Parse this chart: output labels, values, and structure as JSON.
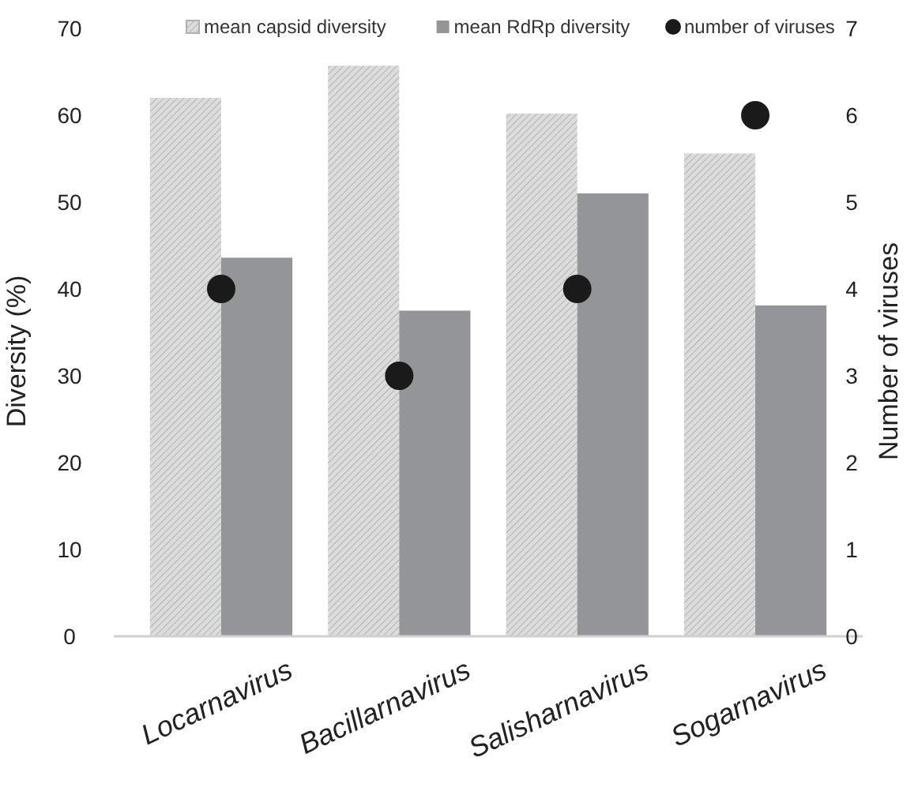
{
  "chart_data": {
    "type": "bar",
    "categories": [
      "Locarnavirus",
      "Bacillarnavirus",
      "Salisharnavirus",
      "Sogarnavirus"
    ],
    "ylabel": "Diversity (%)",
    "y2label": "Number of viruses",
    "series": [
      {
        "name": "mean capsid diversity",
        "color": "#dcdcdc",
        "values": [
          62,
          65.7,
          60.2,
          55.6
        ]
      },
      {
        "name": "mean RdRp diversity",
        "color": "#939598",
        "values": [
          43.6,
          37.5,
          51,
          38.1
        ]
      },
      {
        "name": "number of viruses",
        "type": "scatter",
        "axis": "y2",
        "color": "#1a1a1a",
        "values": [
          4,
          3,
          4,
          6
        ]
      }
    ],
    "ylim": [
      0,
      70
    ],
    "yticks": [
      0,
      10,
      20,
      30,
      40,
      50,
      60,
      70
    ],
    "y2lim": [
      0,
      7
    ],
    "y2ticks": [
      0,
      1,
      2,
      3,
      4,
      5,
      6,
      7
    ],
    "legend": "top",
    "marker": "circle",
    "grid": false
  }
}
